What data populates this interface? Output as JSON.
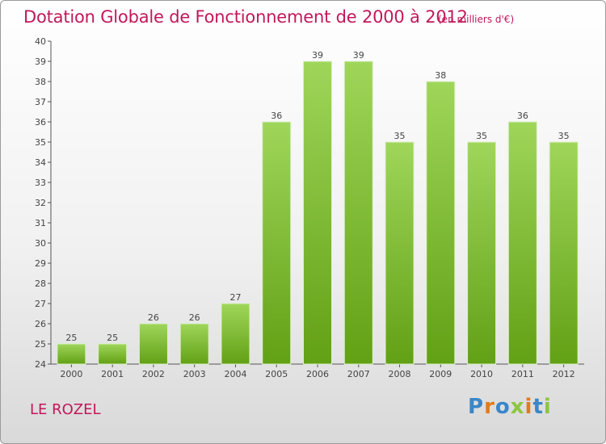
{
  "chart_data": {
    "type": "bar",
    "title": "Dotation Globale de Fonctionnement de 2000 à 2012",
    "subtitle": "(en milliers d'€)",
    "categories": [
      "2000",
      "2001",
      "2002",
      "2003",
      "2004",
      "2005",
      "2006",
      "2007",
      "2008",
      "2009",
      "2010",
      "2011",
      "2012"
    ],
    "values": [
      25,
      25,
      26,
      26,
      27,
      36,
      39,
      39,
      35,
      38,
      35,
      36,
      35
    ],
    "xlabel": "",
    "ylabel": "",
    "ylim": [
      24,
      40
    ],
    "yticks": [
      24,
      25,
      26,
      27,
      28,
      29,
      30,
      31,
      32,
      33,
      34,
      35,
      36,
      37,
      38,
      39,
      40
    ],
    "grid": false,
    "bar_color": "#7cc23a"
  },
  "location": "LE ROZEL",
  "logo": {
    "letters": [
      "P",
      "r",
      "o",
      "x",
      "i",
      "t",
      "i"
    ],
    "colors": [
      "#3a86c8",
      "#e07b1c",
      "#3a86c8",
      "#8cc63f",
      "#e07b1c",
      "#3a86c8",
      "#8cc63f"
    ]
  }
}
